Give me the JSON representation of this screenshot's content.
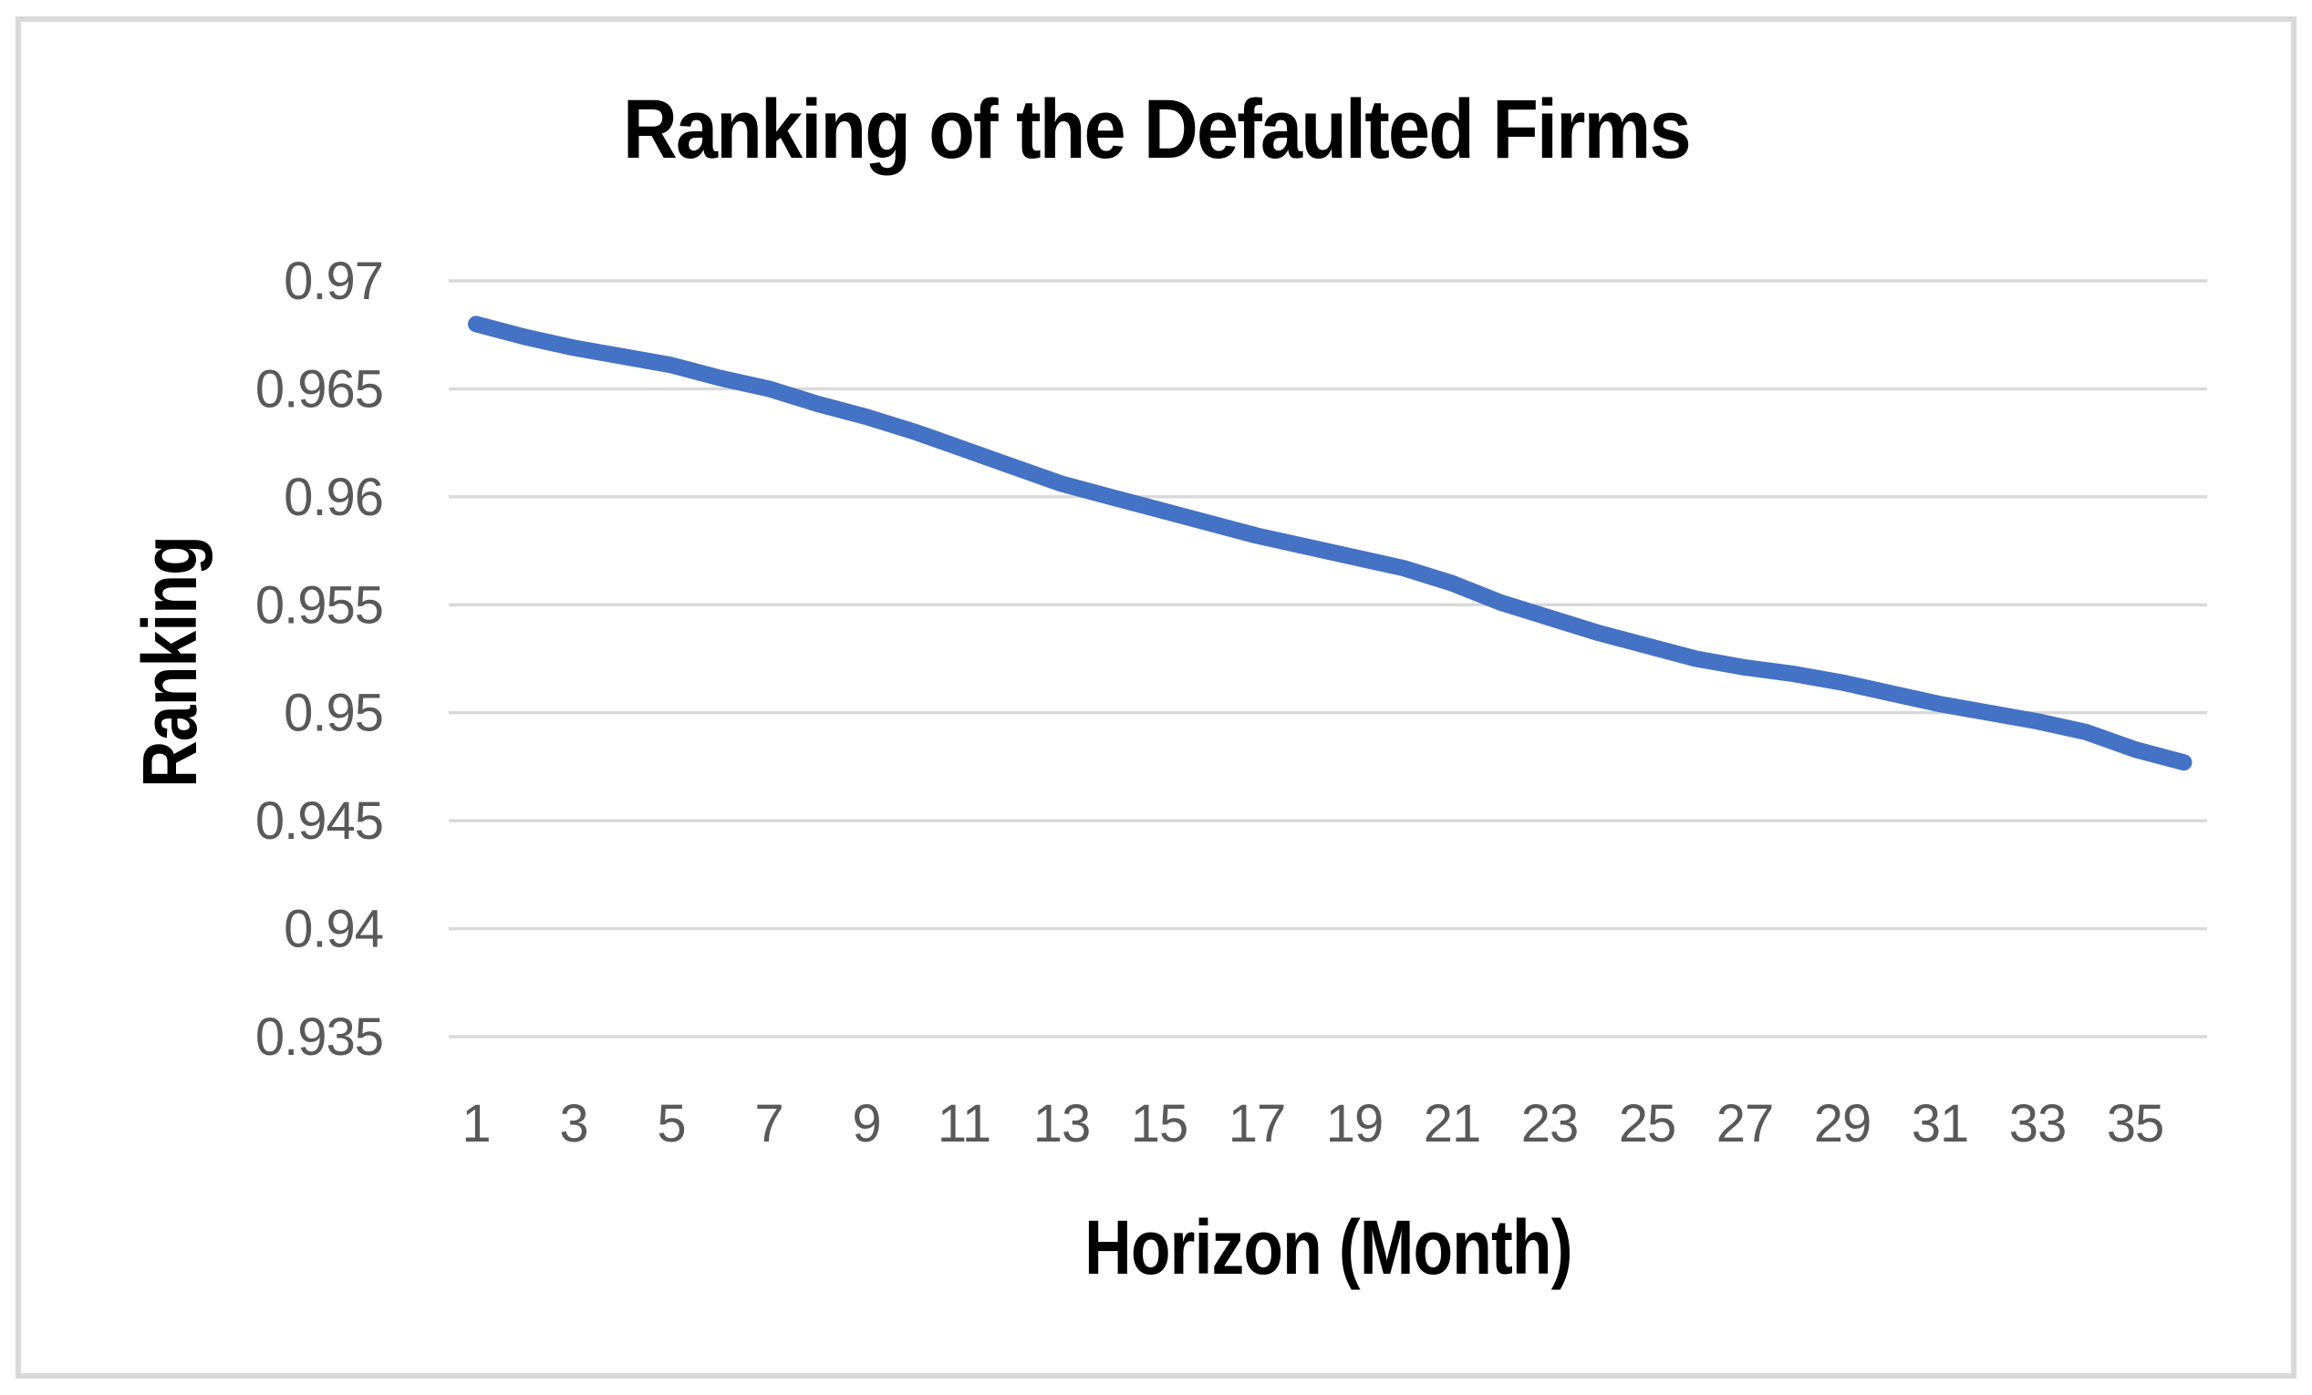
{
  "title": "Ranking of the Defaulted Firms",
  "y_axis_title": "Ranking",
  "x_axis_title": "Horizon (Month)",
  "colors": {
    "line": "#4472C4",
    "gridline": "#D9D9D9",
    "tick_text": "#595959",
    "title_text": "#000000",
    "frame_border": "#D9D9D9",
    "background": "#FFFFFF"
  },
  "chart_data": {
    "type": "line",
    "title": "Ranking of the Defaulted Firms",
    "xlabel": "Horizon (Month)",
    "ylabel": "Ranking",
    "x": [
      1,
      2,
      3,
      4,
      5,
      6,
      7,
      8,
      9,
      10,
      11,
      12,
      13,
      14,
      15,
      16,
      17,
      18,
      19,
      20,
      21,
      22,
      23,
      24,
      25,
      26,
      27,
      28,
      29,
      30,
      31,
      32,
      33,
      34,
      35,
      36
    ],
    "series": [
      {
        "name": "Ranking",
        "color": "#4472C4",
        "values": [
          0.968,
          0.9674,
          0.9669,
          0.9665,
          0.9661,
          0.9655,
          0.965,
          0.9643,
          0.9637,
          0.963,
          0.9622,
          0.9614,
          0.9606,
          0.96,
          0.9594,
          0.9588,
          0.9582,
          0.9577,
          0.9572,
          0.9567,
          0.956,
          0.9551,
          0.9544,
          0.9537,
          0.9531,
          0.9525,
          0.9521,
          0.9518,
          0.9514,
          0.9509,
          0.9504,
          0.95,
          0.9496,
          0.9491,
          0.9483,
          0.9477
        ]
      }
    ],
    "ylim": [
      0.935,
      0.97
    ],
    "ytick_values": [
      0.97,
      0.965,
      0.96,
      0.955,
      0.95,
      0.945,
      0.94,
      0.935
    ],
    "ytick_labels": [
      "0.97",
      "0.965",
      "0.96",
      "0.955",
      "0.95",
      "0.945",
      "0.94",
      "0.935"
    ],
    "xtick_values": [
      1,
      3,
      5,
      7,
      9,
      11,
      13,
      15,
      17,
      19,
      21,
      23,
      25,
      27,
      29,
      31,
      33,
      35
    ],
    "xtick_labels": [
      "1",
      "3",
      "5",
      "7",
      "9",
      "11",
      "13",
      "15",
      "17",
      "19",
      "21",
      "23",
      "25",
      "27",
      "29",
      "31",
      "33",
      "35"
    ],
    "grid": "horizontal",
    "legend": "none"
  }
}
